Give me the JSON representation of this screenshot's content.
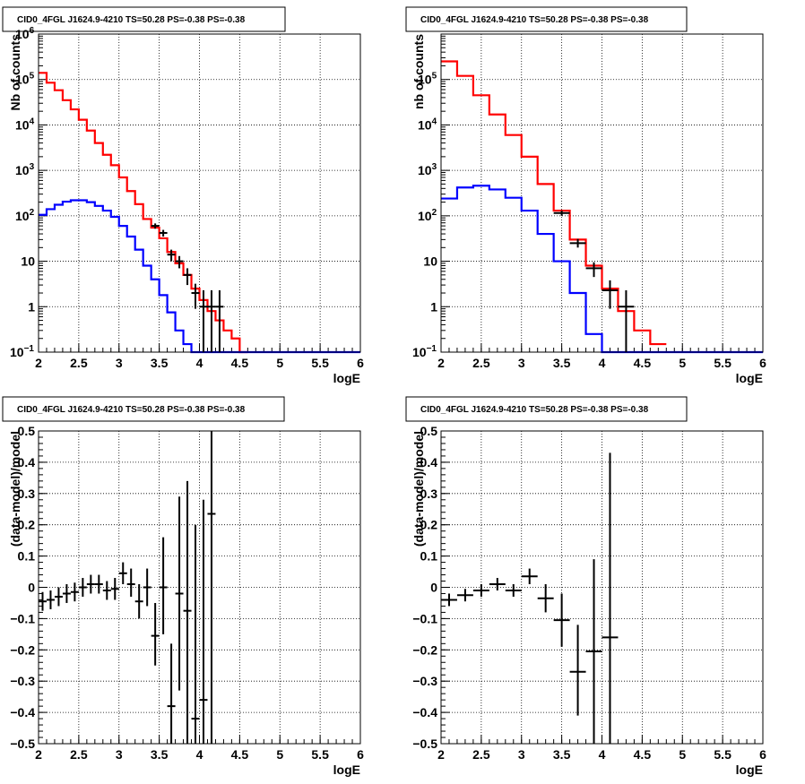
{
  "chart_data": [
    {
      "id": "top-left",
      "type": "line",
      "title": "CID0_4FGL J1624.9-4210 TS=50.28 PS=-0.38 PS=-0.38",
      "xlabel": "logE",
      "ylabel": "Nb of counts",
      "xlim": [
        2,
        6
      ],
      "ylim": [
        0.1,
        1000000
      ],
      "yscale": "log",
      "grid": true,
      "xticks": [
        "2",
        "2.5",
        "3",
        "3.5",
        "4",
        "4.5",
        "5",
        "5.5",
        "6"
      ],
      "yticks": [
        {
          "value": 0.1,
          "label": "10",
          "sup": "−1"
        },
        {
          "value": 1,
          "label": "1",
          "sup": ""
        },
        {
          "value": 10,
          "label": "10",
          "sup": ""
        },
        {
          "value": 100,
          "label": "10",
          "sup": "2"
        },
        {
          "value": 1000,
          "label": "10",
          "sup": "3"
        },
        {
          "value": 10000,
          "label": "10",
          "sup": "4"
        },
        {
          "value": 100000,
          "label": "10",
          "sup": "5"
        },
        {
          "value": 1000000,
          "label": "10",
          "sup": "6"
        }
      ],
      "series": [
        {
          "kind": "step",
          "color": "#ff0000",
          "edges": [
            2.0,
            2.1,
            2.2,
            2.3,
            2.4,
            2.5,
            2.6,
            2.7,
            2.8,
            2.9,
            3.0,
            3.1,
            3.2,
            3.3,
            3.4,
            3.5,
            3.6,
            3.7,
            3.8,
            3.9,
            4.0,
            4.1,
            4.2,
            4.3,
            4.4,
            4.5,
            4.6
          ],
          "values": [
            140000,
            85000,
            58000,
            35000,
            22000,
            13000,
            7500,
            4000,
            2200,
            1300,
            700,
            350,
            180,
            85,
            55,
            32,
            16,
            9,
            5,
            2.5,
            1.4,
            0.8,
            0.5,
            0.3,
            0.2,
            0.1
          ]
        },
        {
          "kind": "step",
          "color": "#0000ff",
          "edges": [
            2.0,
            2.1,
            2.2,
            2.3,
            2.4,
            2.5,
            2.6,
            2.7,
            2.8,
            2.9,
            3.0,
            3.1,
            3.2,
            3.3,
            3.4,
            3.5,
            3.6,
            3.7,
            3.8,
            3.9,
            4.0,
            4.1,
            6.0
          ],
          "values": [
            105,
            140,
            175,
            205,
            220,
            220,
            200,
            165,
            130,
            95,
            60,
            35,
            18,
            8,
            4,
            1.8,
            0.75,
            0.3,
            0.15,
            0.1,
            0.1,
            0.1
          ]
        },
        {
          "kind": "errorbar",
          "color": "#000000",
          "xerr": 0.05,
          "points": [
            {
              "x": 3.45,
              "y": 60,
              "lo": 52,
              "hi": 68
            },
            {
              "x": 3.55,
              "y": 42,
              "lo": 35,
              "hi": 49
            },
            {
              "x": 3.65,
              "y": 14,
              "lo": 10,
              "hi": 18
            },
            {
              "x": 3.75,
              "y": 10,
              "lo": 7,
              "hi": 13
            },
            {
              "x": 3.85,
              "y": 5,
              "lo": 3,
              "hi": 7
            },
            {
              "x": 3.95,
              "y": 2,
              "lo": 0.9,
              "hi": 3.2
            },
            {
              "x": 4.05,
              "y": 1,
              "lo": 0.1,
              "hi": 2.3
            },
            {
              "x": 4.15,
              "y": 1,
              "lo": 0.1,
              "hi": 2.3
            },
            {
              "x": 4.25,
              "y": 1,
              "lo": 0.1,
              "hi": 2.3
            }
          ]
        }
      ]
    },
    {
      "id": "top-right",
      "type": "line",
      "title": "CID0_4FGL J1624.9-4210 TS=50.28 PS=-0.38 PS=-0.38",
      "xlabel": "logE",
      "ylabel": "nb of counts",
      "xlim": [
        2,
        6
      ],
      "ylim": [
        0.1,
        1000000
      ],
      "yscale": "log",
      "grid": true,
      "xticks": [
        "2",
        "2.5",
        "3",
        "3.5",
        "4",
        "4.5",
        "5",
        "5.5",
        "6"
      ],
      "yticks": [
        {
          "value": 0.1,
          "label": "10",
          "sup": "−1"
        },
        {
          "value": 1,
          "label": "1",
          "sup": ""
        },
        {
          "value": 10,
          "label": "10",
          "sup": ""
        },
        {
          "value": 100,
          "label": "10",
          "sup": "2"
        },
        {
          "value": 1000,
          "label": "10",
          "sup": "3"
        },
        {
          "value": 10000,
          "label": "10",
          "sup": "4"
        },
        {
          "value": 100000,
          "label": "10",
          "sup": "5"
        }
      ],
      "series": [
        {
          "kind": "step",
          "color": "#ff0000",
          "edges": [
            2.0,
            2.2,
            2.4,
            2.6,
            2.8,
            3.0,
            3.2,
            3.4,
            3.6,
            3.8,
            4.0,
            4.2,
            4.4,
            4.6,
            4.8
          ],
          "values": [
            250000,
            120000,
            45000,
            17000,
            6000,
            2000,
            500,
            130,
            30,
            8,
            2.5,
            0.8,
            0.3,
            0.15
          ]
        },
        {
          "kind": "step",
          "color": "#0000ff",
          "edges": [
            2.0,
            2.2,
            2.4,
            2.6,
            2.8,
            3.0,
            3.2,
            3.4,
            3.6,
            3.8,
            4.0,
            6.0
          ],
          "values": [
            240,
            420,
            460,
            380,
            250,
            130,
            40,
            10,
            2,
            0.25,
            0.1
          ]
        },
        {
          "kind": "errorbar",
          "color": "#000000",
          "xerr": 0.1,
          "points": [
            {
              "x": 3.5,
              "y": 115,
              "lo": 100,
              "hi": 130
            },
            {
              "x": 3.7,
              "y": 25,
              "lo": 20,
              "hi": 31
            },
            {
              "x": 3.9,
              "y": 7,
              "lo": 4.5,
              "hi": 9.5
            },
            {
              "x": 4.1,
              "y": 2.3,
              "lo": 0.9,
              "hi": 3.8
            },
            {
              "x": 4.3,
              "y": 1,
              "lo": 0.1,
              "hi": 2.3
            }
          ]
        }
      ]
    },
    {
      "id": "bottom-left",
      "type": "scatter",
      "title": "CID0_4FGL J1624.9-4210 TS=50.28 PS=-0.38 PS=-0.38",
      "xlabel": "logE",
      "ylabel": "(data-model)/model",
      "xlim": [
        2,
        6
      ],
      "ylim": [
        -0.5,
        0.5
      ],
      "yscale": "linear",
      "grid": true,
      "xticks": [
        "2",
        "2.5",
        "3",
        "3.5",
        "4",
        "4.5",
        "5",
        "5.5",
        "6"
      ],
      "yticks": [
        {
          "value": -0.5,
          "label": "−0.5",
          "sup": ""
        },
        {
          "value": -0.4,
          "label": "−0.4",
          "sup": ""
        },
        {
          "value": -0.3,
          "label": "−0.3",
          "sup": ""
        },
        {
          "value": -0.2,
          "label": "−0.2",
          "sup": ""
        },
        {
          "value": -0.1,
          "label": "−0.1",
          "sup": ""
        },
        {
          "value": 0,
          "label": "0",
          "sup": ""
        },
        {
          "value": 0.1,
          "label": "0.1",
          "sup": ""
        },
        {
          "value": 0.2,
          "label": "0.2",
          "sup": ""
        },
        {
          "value": 0.3,
          "label": "0.3",
          "sup": ""
        },
        {
          "value": 0.4,
          "label": "0.4",
          "sup": ""
        },
        {
          "value": 0.5,
          "label": "0.5",
          "sup": ""
        }
      ],
      "series": [
        {
          "kind": "errorbar",
          "color": "#000000",
          "xerr": 0.05,
          "points": [
            {
              "x": 2.05,
              "y": -0.045,
              "lo": -0.075,
              "hi": -0.015
            },
            {
              "x": 2.15,
              "y": -0.04,
              "lo": -0.07,
              "hi": -0.01
            },
            {
              "x": 2.25,
              "y": -0.03,
              "lo": -0.06,
              "hi": 0.0
            },
            {
              "x": 2.35,
              "y": -0.02,
              "lo": -0.05,
              "hi": 0.01
            },
            {
              "x": 2.45,
              "y": -0.015,
              "lo": -0.045,
              "hi": 0.015
            },
            {
              "x": 2.55,
              "y": 0.0,
              "lo": -0.03,
              "hi": 0.03
            },
            {
              "x": 2.65,
              "y": 0.01,
              "lo": -0.02,
              "hi": 0.04
            },
            {
              "x": 2.75,
              "y": 0.01,
              "lo": -0.02,
              "hi": 0.04
            },
            {
              "x": 2.85,
              "y": -0.01,
              "lo": -0.04,
              "hi": 0.02
            },
            {
              "x": 2.95,
              "y": -0.005,
              "lo": -0.04,
              "hi": 0.03
            },
            {
              "x": 3.05,
              "y": 0.045,
              "lo": 0.01,
              "hi": 0.08
            },
            {
              "x": 3.15,
              "y": 0.01,
              "lo": -0.03,
              "hi": 0.06
            },
            {
              "x": 3.25,
              "y": -0.045,
              "lo": -0.1,
              "hi": 0.01
            },
            {
              "x": 3.35,
              "y": 0.0,
              "lo": -0.06,
              "hi": 0.06
            },
            {
              "x": 3.45,
              "y": -0.155,
              "lo": -0.25,
              "hi": -0.05
            },
            {
              "x": 3.55,
              "y": 0.0,
              "lo": -0.15,
              "hi": 0.16
            },
            {
              "x": 3.65,
              "y": -0.38,
              "lo": -0.5,
              "hi": -0.18
            },
            {
              "x": 3.75,
              "y": -0.02,
              "lo": -0.33,
              "hi": 0.29
            },
            {
              "x": 3.85,
              "y": -0.075,
              "lo": -0.5,
              "hi": 0.34
            },
            {
              "x": 3.95,
              "y": -0.42,
              "lo": -0.5,
              "hi": 0.2
            },
            {
              "x": 4.05,
              "y": -0.36,
              "lo": -0.5,
              "hi": 0.28
            },
            {
              "x": 4.15,
              "y": 0.235,
              "lo": -0.5,
              "hi": 0.5
            }
          ]
        }
      ]
    },
    {
      "id": "bottom-right",
      "type": "scatter",
      "title": "CID0_4FGL J1624.9-4210 TS=50.28 PS=-0.38 PS=-0.38",
      "xlabel": "logE",
      "ylabel": "(data-model)/model",
      "xlim": [
        2,
        6
      ],
      "ylim": [
        -0.5,
        0.5
      ],
      "yscale": "linear",
      "grid": true,
      "xticks": [
        "2",
        "2.5",
        "3",
        "3.5",
        "4",
        "4.5",
        "5",
        "5.5",
        "6"
      ],
      "yticks": [
        {
          "value": -0.5,
          "label": "−0.5",
          "sup": ""
        },
        {
          "value": -0.4,
          "label": "−0.4",
          "sup": ""
        },
        {
          "value": -0.3,
          "label": "−0.3",
          "sup": ""
        },
        {
          "value": -0.2,
          "label": "−0.2",
          "sup": ""
        },
        {
          "value": -0.1,
          "label": "−0.1",
          "sup": ""
        },
        {
          "value": 0,
          "label": "0",
          "sup": ""
        },
        {
          "value": 0.1,
          "label": "0.1",
          "sup": ""
        },
        {
          "value": 0.2,
          "label": "0.2",
          "sup": ""
        },
        {
          "value": 0.3,
          "label": "0.3",
          "sup": ""
        },
        {
          "value": 0.4,
          "label": "0.4",
          "sup": ""
        },
        {
          "value": 0.5,
          "label": "0.5",
          "sup": ""
        }
      ],
      "series": [
        {
          "kind": "errorbar",
          "color": "#000000",
          "xerr": 0.1,
          "points": [
            {
              "x": 2.1,
              "y": -0.04,
              "lo": -0.06,
              "hi": -0.02
            },
            {
              "x": 2.3,
              "y": -0.025,
              "lo": -0.045,
              "hi": -0.005
            },
            {
              "x": 2.5,
              "y": -0.01,
              "lo": -0.03,
              "hi": 0.01
            },
            {
              "x": 2.7,
              "y": 0.01,
              "lo": -0.01,
              "hi": 0.03
            },
            {
              "x": 2.9,
              "y": -0.01,
              "lo": -0.03,
              "hi": 0.01
            },
            {
              "x": 3.1,
              "y": 0.035,
              "lo": 0.01,
              "hi": 0.06
            },
            {
              "x": 3.3,
              "y": -0.035,
              "lo": -0.08,
              "hi": 0.01
            },
            {
              "x": 3.5,
              "y": -0.105,
              "lo": -0.19,
              "hi": -0.02
            },
            {
              "x": 3.7,
              "y": -0.27,
              "lo": -0.41,
              "hi": -0.12
            },
            {
              "x": 3.9,
              "y": -0.205,
              "lo": -0.5,
              "hi": 0.09
            },
            {
              "x": 4.1,
              "y": -0.16,
              "lo": -0.5,
              "hi": 0.43
            }
          ]
        }
      ]
    }
  ]
}
